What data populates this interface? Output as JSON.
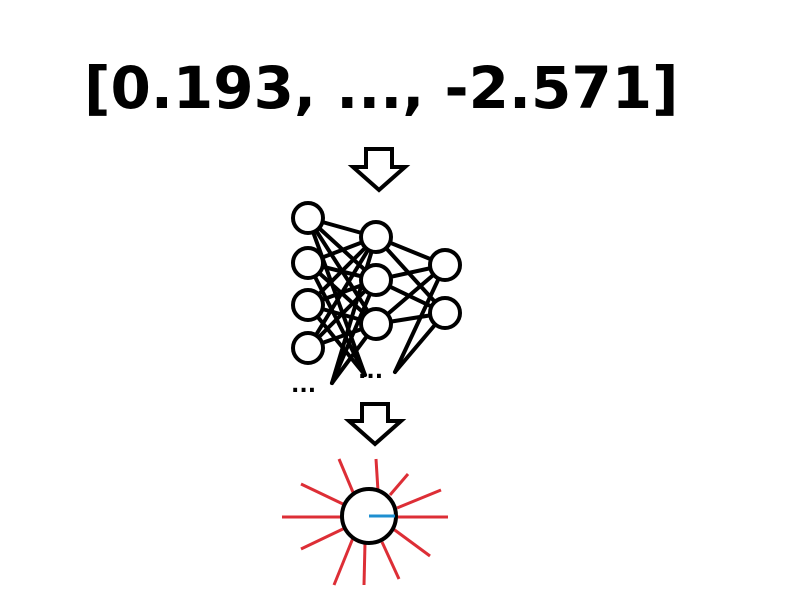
{
  "vector": {
    "text": "[0.193, ..., -2.571]"
  },
  "network": {
    "input_ellipsis": "...",
    "hidden_ellipsis": "...",
    "layers": [
      4,
      3,
      2
    ]
  },
  "colors": {
    "stroke": "#000000",
    "rays": "#dd2e36",
    "pointer": "#1e8fd0",
    "background": "#ffffff"
  },
  "icons": {
    "top_arrow": "down-arrow-icon",
    "bottom_arrow": "down-arrow-icon",
    "output": "circle-with-rays-icon"
  }
}
